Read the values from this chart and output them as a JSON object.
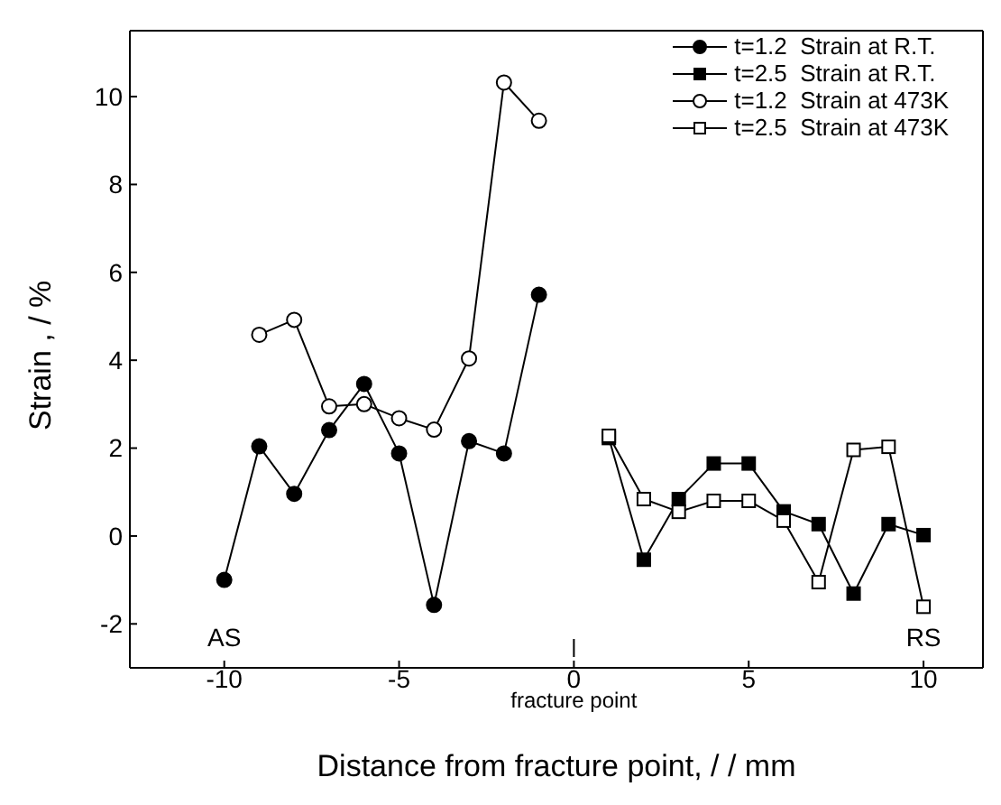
{
  "chart_data": {
    "type": "line",
    "xlabel": "Distance from fracture point, / / mm",
    "ylabel": "Strain , / %",
    "xlim": [
      -12.7,
      11.7
    ],
    "xticks": [
      -10,
      -5,
      0,
      5,
      10
    ],
    "ylim": [
      -3,
      11.5
    ],
    "yticks": [
      -2,
      0,
      2,
      4,
      6,
      8,
      10
    ],
    "legend": "top right",
    "line_style": "solid",
    "annotations": [
      "fracture point",
      "AS",
      "RS"
    ],
    "series": [
      {
        "name": "t=1.2  Strain at R.T.",
        "color": "#000000",
        "marker": "circle",
        "x": [
          -10,
          -9,
          -8,
          -7,
          -6,
          -5,
          -4,
          -3,
          -2,
          -1
        ],
        "values": [
          -1.0,
          2.04,
          0.96,
          2.41,
          3.46,
          1.88,
          -1.57,
          2.16,
          1.88,
          5.49
        ]
      },
      {
        "name": "t=2.5  Strain at R.T.",
        "color": "#000000",
        "marker": "square",
        "x": [
          1,
          2,
          3,
          4,
          5,
          6,
          7,
          8,
          9,
          10
        ],
        "values": [
          2.23,
          -0.54,
          0.84,
          1.65,
          1.65,
          0.56,
          0.27,
          -1.31,
          0.27,
          0.02
        ]
      },
      {
        "name": "t=1.2  Strain at 473K",
        "color": "#000000",
        "marker": "circle-open",
        "x": [
          -9,
          -8,
          -7,
          -6,
          -5,
          -4,
          -3,
          -2,
          -1
        ],
        "values": [
          4.58,
          4.92,
          2.95,
          3.0,
          2.68,
          2.42,
          4.04,
          10.32,
          9.45
        ]
      },
      {
        "name": "t=2.5  Strain at 473K",
        "color": "#000000",
        "marker": "square-open",
        "x": [
          1,
          2,
          3,
          4,
          5,
          6,
          7,
          8,
          9,
          10
        ],
        "values": [
          2.28,
          0.84,
          0.55,
          0.8,
          0.8,
          0.35,
          -1.05,
          1.96,
          2.03,
          -1.61
        ]
      }
    ]
  }
}
